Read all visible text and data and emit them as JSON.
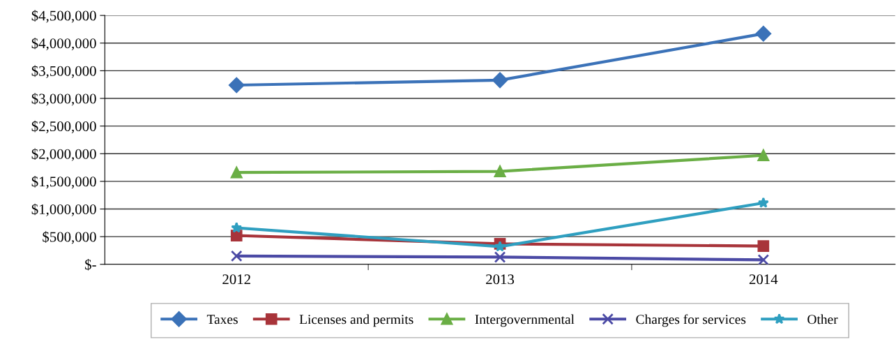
{
  "chart_data": {
    "type": "line",
    "categories": [
      "2012",
      "2013",
      "2014"
    ],
    "series": [
      {
        "name": "Taxes",
        "color": "#3b72b8",
        "marker": "diamond",
        "values": [
          3240000,
          3330000,
          4170000
        ]
      },
      {
        "name": "Licenses and permits",
        "color": "#a8343a",
        "marker": "square",
        "values": [
          520000,
          370000,
          330000
        ]
      },
      {
        "name": "Intergovernmental",
        "color": "#6aae45",
        "marker": "triangle",
        "values": [
          1660000,
          1680000,
          1970000
        ]
      },
      {
        "name": "Charges for services",
        "color": "#4b4aa5",
        "marker": "cross",
        "values": [
          150000,
          130000,
          80000
        ]
      },
      {
        "name": "Other",
        "color": "#2f9fc0",
        "marker": "star",
        "values": [
          660000,
          320000,
          1110000
        ]
      }
    ],
    "ylim": [
      0,
      4500000
    ],
    "yticks": [
      {
        "value": 0,
        "label": "$-"
      },
      {
        "value": 500000,
        "label": "$500,000"
      },
      {
        "value": 1000000,
        "label": "$1,000,000"
      },
      {
        "value": 1500000,
        "label": "$1,500,000"
      },
      {
        "value": 2000000,
        "label": "$2,000,000"
      },
      {
        "value": 2500000,
        "label": "$2,500,000"
      },
      {
        "value": 3000000,
        "label": "$3,000,000"
      },
      {
        "value": 3500000,
        "label": "$3,500,000"
      },
      {
        "value": 4000000,
        "label": "$4,000,000"
      },
      {
        "value": 4500000,
        "label": "$4,500,000"
      }
    ],
    "grid": "y",
    "legend": "bottom",
    "line_style": "solid"
  }
}
